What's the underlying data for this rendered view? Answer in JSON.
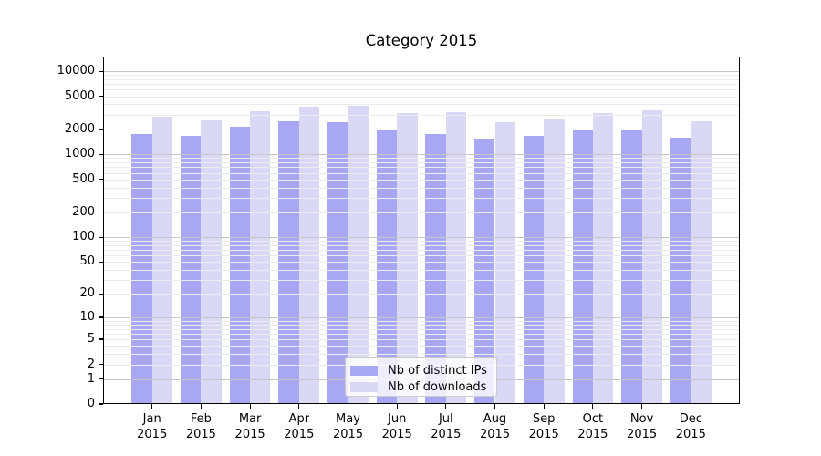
{
  "chart_data": {
    "type": "bar",
    "title": "Category 2015",
    "months": [
      "Jan",
      "Feb",
      "Mar",
      "Apr",
      "May",
      "Jun",
      "Jul",
      "Aug",
      "Sep",
      "Oct",
      "Nov",
      "Dec"
    ],
    "year": "2015",
    "series": [
      {
        "name": "Nb of distinct IPs",
        "color": "#a7a7f4",
        "values": [
          1770,
          1660,
          2150,
          2530,
          2470,
          1930,
          1770,
          1560,
          1660,
          1960,
          1980,
          1600
        ]
      },
      {
        "name": "Nb of downloads",
        "color": "#d9d9f6",
        "values": [
          2820,
          2580,
          3340,
          3790,
          3860,
          3130,
          3210,
          2470,
          2710,
          3180,
          3430,
          2510
        ]
      }
    ],
    "y_scale": "log1p",
    "ylim": [
      0,
      15000
    ],
    "y_ticks": [
      {
        "value": 0,
        "label": "0"
      },
      {
        "value": 1,
        "label": "1"
      },
      {
        "value": 2,
        "label": "2"
      },
      {
        "value": 5,
        "label": "5"
      },
      {
        "value": 10,
        "label": "10"
      },
      {
        "value": 20,
        "label": "20"
      },
      {
        "value": 50,
        "label": "50"
      },
      {
        "value": 100,
        "label": "100"
      },
      {
        "value": 200,
        "label": "200"
      },
      {
        "value": 500,
        "label": "500"
      },
      {
        "value": 1000,
        "label": "1000"
      },
      {
        "value": 2000,
        "label": "2000"
      },
      {
        "value": 5000,
        "label": "5000"
      },
      {
        "value": 10000,
        "label": "10000"
      }
    ],
    "y_minor_ticks": [
      3,
      4,
      6,
      7,
      8,
      9,
      30,
      40,
      60,
      70,
      80,
      90,
      300,
      400,
      600,
      700,
      800,
      900,
      3000,
      4000,
      6000,
      7000,
      8000,
      9000
    ],
    "decade_lines": [
      1,
      10,
      100,
      1000,
      10000
    ],
    "grid": true,
    "legend_position": "lower center"
  },
  "colors": {
    "major_grid": "#c6c6c6",
    "minor_grid": "#ececec",
    "spine": "#000000",
    "background": "#ffffff"
  }
}
